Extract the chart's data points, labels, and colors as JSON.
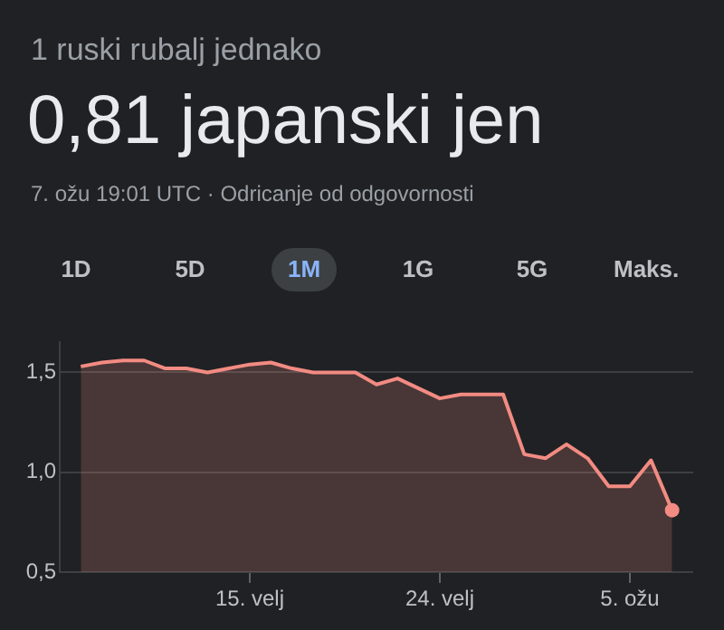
{
  "chart_data": {
    "type": "area",
    "subtitle": "1 ruski rubalj jednako",
    "title": "0,81 japanski jen",
    "annotations": [
      "7. ožu 19:01 UTC · Odricanje od odgovornosti",
      "1D",
      "5D",
      "1M",
      "1G",
      "5G",
      "Maks."
    ],
    "x": [
      "--02-07",
      "--02-08",
      "--02-09",
      "--02-10",
      "--02-11",
      "--02-12",
      "--02-13",
      "--02-14",
      "--02-15",
      "--02-16",
      "--02-17",
      "--02-18",
      "--02-19",
      "--02-20",
      "--02-21",
      "--02-22",
      "--02-23",
      "--02-24",
      "--02-25",
      "--02-26",
      "--02-27",
      "--02-28",
      "--03-01",
      "--03-02",
      "--03-03",
      "--03-04",
      "--03-05",
      "--03-06",
      "--03-07"
    ],
    "series": [
      {
        "color": "#f28b82",
        "values": [
          1.53,
          1.55,
          1.56,
          1.56,
          1.52,
          1.52,
          1.5,
          1.52,
          1.54,
          1.55,
          1.52,
          1.5,
          1.5,
          1.5,
          1.44,
          1.47,
          1.42,
          1.37,
          1.39,
          1.39,
          1.39,
          1.09,
          1.07,
          1.14,
          1.07,
          0.93,
          0.93,
          1.06,
          0.81
        ]
      }
    ],
    "xlim": [
      "--02-06",
      "--03-08"
    ],
    "xticks": [
      {
        "value": "--02-15",
        "label": "15. velj"
      },
      {
        "value": "--02-24",
        "label": "24. velj"
      },
      {
        "value": "--03-05",
        "label": "5. ožu"
      }
    ],
    "ylim": [
      0.5,
      1.65
    ],
    "yticks": [
      {
        "value": 0.5,
        "label": "0,5"
      },
      {
        "value": 1.0,
        "label": "1,0"
      },
      {
        "value": 1.5,
        "label": "1,5"
      }
    ],
    "grid": "y"
  }
}
